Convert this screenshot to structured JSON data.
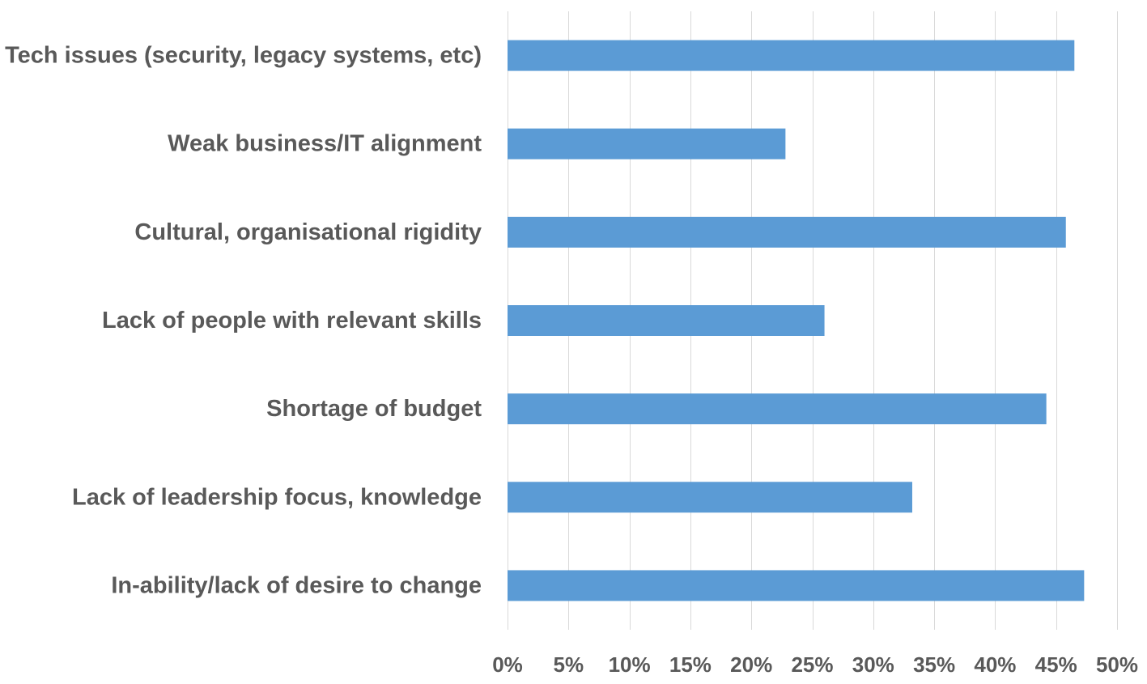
{
  "chart_data": {
    "type": "bar",
    "orientation": "horizontal",
    "categories": [
      "Tech issues (security, legacy systems, etc)",
      "Weak business/IT alignment",
      "Cultural, organisational rigidity",
      "Lack of people with relevant skills",
      "Shortage of budget",
      "Lack of leadership focus, knowledge",
      "In-ability/lack of desire to change"
    ],
    "values": [
      46.5,
      22.8,
      45.8,
      26.0,
      44.2,
      33.2,
      47.3
    ],
    "xlim": [
      0,
      50
    ],
    "xticks": [
      0,
      5,
      10,
      15,
      20,
      25,
      30,
      35,
      40,
      45,
      50
    ],
    "tick_labels": [
      "0%",
      "5%",
      "10%",
      "15%",
      "20%",
      "25%",
      "30%",
      "35%",
      "40%",
      "45%",
      "50%"
    ],
    "grid": "vertical",
    "legend": "none",
    "bar_color": "#5b9bd5",
    "grid_color": "#d9d9d9",
    "text_color": "#595959"
  }
}
